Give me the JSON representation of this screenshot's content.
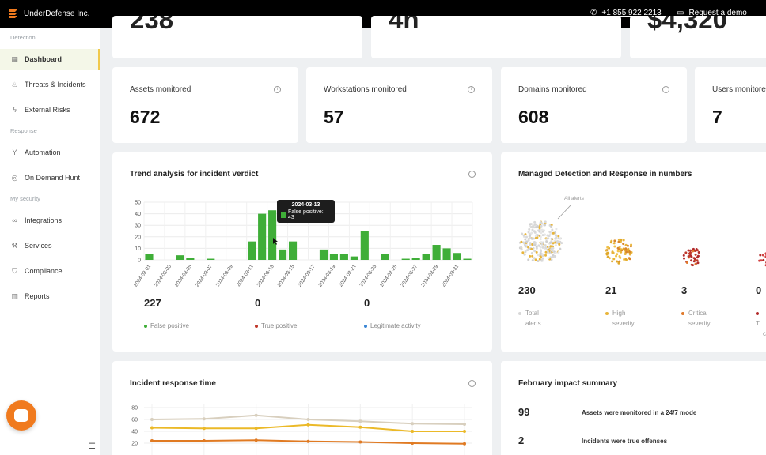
{
  "topbar": {
    "brand": "UnderDefense Inc.",
    "phone": "+1 855 922 2213",
    "demo": "Request a demo"
  },
  "sidebar": {
    "sections": [
      "Detection",
      "Response",
      "My security"
    ],
    "items": [
      {
        "label": "Dashboard",
        "icon": "grid-icon"
      },
      {
        "label": "Threats & Incidents",
        "icon": "fire-icon"
      },
      {
        "label": "External Risks",
        "icon": "lightning-icon"
      },
      {
        "label": "Automation",
        "icon": "branch-icon"
      },
      {
        "label": "On Demand Hunt",
        "icon": "target-icon"
      },
      {
        "label": "Integrations",
        "icon": "link-icon"
      },
      {
        "label": "Services",
        "icon": "wrench-icon"
      },
      {
        "label": "Compliance",
        "icon": "shield-icon"
      },
      {
        "label": "Reports",
        "icon": "chart-icon"
      }
    ]
  },
  "top_cut": {
    "v1": "238",
    "v2": "4h",
    "v3": "$4,320"
  },
  "metrics": [
    {
      "label": "Assets monitored",
      "value": "672"
    },
    {
      "label": "Workstations monitored",
      "value": "57"
    },
    {
      "label": "Domains monitored",
      "value": "608"
    },
    {
      "label": "Users monitored",
      "value": "7"
    }
  ],
  "trend": {
    "title": "Trend analysis for incident verdict",
    "tooltip_date": "2024-03-13",
    "tooltip_text": "False positive: 43",
    "stats": [
      "227",
      "0",
      "0"
    ],
    "legend": [
      "False positive",
      "True positive",
      "Legitimate activity"
    ],
    "colors": [
      "#3fae38",
      "#c0392b",
      "#3a86d4"
    ]
  },
  "mdr": {
    "title": "Managed Detection and Response in numbers",
    "annotation": "All alerts",
    "values": [
      "230",
      "21",
      "3",
      "0"
    ],
    "labels": [
      [
        "Total",
        "alerts"
      ],
      [
        "High",
        "severity"
      ],
      [
        "Critical",
        "severity"
      ],
      [
        "T",
        "c"
      ]
    ],
    "colors": [
      "#d8d8d8",
      "#e8b53a",
      "#e07a2c",
      "#b22a2a"
    ]
  },
  "irt": {
    "title": "Incident response time"
  },
  "feb": {
    "title": "February impact summary",
    "rows": [
      {
        "value": "99",
        "text": "Assets were monitored in a 24/7 mode"
      },
      {
        "value": "2",
        "text": "Incidents were true offenses"
      }
    ]
  },
  "chart_data": [
    {
      "type": "bar",
      "title": "Trend analysis for incident verdict",
      "categories": [
        "2024-03-01",
        "2024-03-02",
        "2024-03-03",
        "2024-03-04",
        "2024-03-05",
        "2024-03-06",
        "2024-03-07",
        "2024-03-08",
        "2024-03-09",
        "2024-03-10",
        "2024-03-11",
        "2024-03-12",
        "2024-03-13",
        "2024-03-14",
        "2024-03-15",
        "2024-03-16",
        "2024-03-17",
        "2024-03-18",
        "2024-03-19",
        "2024-03-20",
        "2024-03-21",
        "2024-03-22",
        "2024-03-23",
        "2024-03-24",
        "2024-03-25",
        "2024-03-26",
        "2024-03-27",
        "2024-03-28",
        "2024-03-29",
        "2024-03-30",
        "2024-03-31",
        "2024-04-01"
      ],
      "tick_labels": [
        "2024-03-01",
        "2024-03-03",
        "2024-03-05",
        "2024-03-07",
        "2024-03-09",
        "2024-03-11",
        "2024-03-13",
        "2024-03-15",
        "2024-03-17",
        "2024-03-19",
        "2024-03-21",
        "2024-03-23",
        "2024-03-25",
        "2024-03-27",
        "2024-03-29",
        "2024-03-31"
      ],
      "series": [
        {
          "name": "False positive",
          "values": [
            5,
            0,
            0,
            4,
            2,
            0,
            1,
            0,
            0,
            0,
            16,
            40,
            43,
            9,
            16,
            0,
            0,
            9,
            5,
            5,
            3,
            25,
            0,
            5,
            0,
            1,
            2,
            5,
            13,
            10,
            6,
            1
          ]
        }
      ],
      "yticks": [
        0,
        10,
        20,
        30,
        40,
        50
      ],
      "ylim": [
        0,
        50
      ]
    },
    {
      "type": "line",
      "title": "Incident response time",
      "yticks": [
        20,
        40,
        60,
        80
      ],
      "ylim": [
        0,
        80
      ],
      "series": [
        {
          "values": [
            60,
            61,
            67,
            60,
            57,
            53,
            52
          ],
          "color": "#d8cfbe"
        },
        {
          "values": [
            46,
            45,
            45,
            51,
            47,
            40,
            40
          ],
          "color": "#ebb928"
        },
        {
          "values": [
            24,
            24,
            25,
            23,
            22,
            20,
            19
          ],
          "color": "#e07a22"
        }
      ]
    }
  ]
}
